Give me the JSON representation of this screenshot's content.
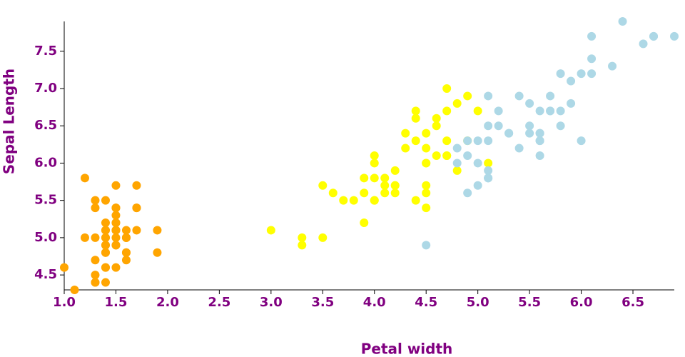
{
  "chart_data": {
    "type": "scatter",
    "x_label": "Petal width",
    "y_label": "Sepal Length",
    "xlim": [
      1.0,
      6.9
    ],
    "ylim": [
      4.3,
      7.9
    ],
    "xticks": [
      {
        "value": 1,
        "label": "1.0"
      },
      1.5,
      {
        "value": 2,
        "label": "2.0"
      },
      2.5,
      {
        "value": 3,
        "label": "3.0"
      },
      3.5,
      {
        "value": 4,
        "label": "4.0"
      },
      4.5,
      {
        "value": 5,
        "label": "5.0"
      },
      5.5,
      {
        "value": 6,
        "label": "6.0"
      },
      6.5
    ],
    "yticks": [
      4.5,
      {
        "value": 5,
        "label": "5.0"
      },
      5.5,
      {
        "value": 6,
        "label": "6.0"
      },
      6.5,
      {
        "value": 7,
        "label": "7.0"
      },
      7.5
    ],
    "series": [
      {
        "color": "#ffa500",
        "x": [
          1.4,
          1.4,
          1.3,
          1.5,
          1.4,
          1.7,
          1.4,
          1.5,
          1.4,
          1.5,
          1.5,
          1.6,
          1.4,
          1.1,
          1.2,
          1.5,
          1.3,
          1.4,
          1.7,
          1.5,
          1.7,
          1.5,
          1.0,
          1.7,
          1.9,
          1.6,
          1.6,
          1.5,
          1.4,
          1.6,
          1.6,
          1.5,
          1.5,
          1.4,
          1.5,
          1.2,
          1.3,
          1.4,
          1.3,
          1.5,
          1.3,
          1.3,
          1.3,
          1.6,
          1.9,
          1.4,
          1.6,
          1.4,
          1.5,
          1.4
        ],
        "values": [
          5.1,
          4.9,
          4.7,
          4.6,
          5.0,
          5.4,
          4.6,
          5.0,
          4.4,
          4.9,
          5.4,
          4.8,
          4.8,
          4.3,
          5.8,
          5.7,
          5.4,
          5.1,
          5.7,
          5.1,
          5.4,
          5.1,
          4.6,
          5.1,
          4.8,
          5.0,
          5.0,
          5.2,
          5.2,
          4.7,
          4.8,
          5.4,
          5.2,
          5.5,
          4.9,
          5.0,
          5.5,
          4.9,
          4.4,
          5.1,
          5.0,
          4.5,
          4.4,
          5.0,
          5.1,
          4.8,
          5.1,
          4.6,
          5.3,
          5.0
        ]
      },
      {
        "color": "#ffff00",
        "x": [
          4.7,
          4.5,
          4.9,
          4.0,
          4.6,
          4.5,
          4.7,
          3.3,
          4.6,
          3.9,
          3.5,
          4.2,
          4.0,
          4.7,
          3.6,
          4.4,
          4.5,
          4.1,
          4.5,
          3.9,
          4.8,
          4.0,
          4.9,
          4.7,
          4.3,
          4.4,
          4.8,
          5.0,
          4.5,
          3.5,
          3.8,
          3.7,
          3.9,
          5.1,
          4.5,
          4.5,
          4.7,
          4.4,
          4.1,
          4.0,
          4.4,
          4.6,
          4.0,
          3.3,
          4.2,
          4.2,
          4.2,
          4.3,
          3.0,
          4.1
        ],
        "values": [
          7.0,
          6.4,
          6.9,
          5.5,
          6.5,
          5.7,
          6.3,
          4.9,
          6.6,
          5.2,
          5.0,
          5.9,
          6.0,
          6.1,
          5.6,
          6.7,
          5.6,
          5.8,
          6.2,
          5.6,
          5.9,
          6.1,
          6.3,
          6.1,
          6.4,
          6.6,
          6.8,
          6.7,
          6.0,
          5.7,
          5.5,
          5.5,
          5.8,
          6.0,
          5.4,
          6.0,
          6.7,
          6.3,
          5.6,
          5.5,
          5.5,
          6.1,
          5.8,
          5.0,
          5.6,
          5.7,
          5.7,
          6.2,
          5.1,
          5.7
        ]
      },
      {
        "color": "#add8e6",
        "x": [
          6.0,
          5.1,
          5.9,
          5.6,
          5.8,
          6.6,
          4.5,
          6.3,
          5.8,
          6.1,
          5.1,
          5.3,
          5.5,
          5.0,
          5.1,
          5.3,
          5.5,
          6.7,
          6.9,
          5.0,
          5.7,
          4.9,
          6.7,
          4.9,
          5.7,
          6.0,
          4.8,
          4.9,
          5.6,
          5.8,
          6.1,
          6.4,
          5.6,
          5.1,
          5.6,
          6.1,
          5.6,
          5.5,
          4.8,
          5.4,
          5.6,
          5.1,
          5.1,
          5.9,
          5.7,
          5.2,
          5.0,
          5.2,
          5.4,
          5.1
        ],
        "values": [
          6.3,
          5.8,
          7.1,
          6.3,
          6.5,
          7.6,
          4.9,
          7.3,
          6.7,
          7.2,
          6.5,
          6.4,
          6.8,
          5.7,
          5.8,
          6.4,
          6.5,
          7.7,
          7.7,
          6.0,
          6.9,
          5.6,
          7.7,
          6.3,
          6.7,
          7.2,
          6.2,
          6.1,
          6.4,
          7.2,
          7.4,
          7.9,
          6.4,
          6.3,
          6.1,
          7.7,
          6.3,
          6.4,
          6.0,
          6.9,
          6.7,
          6.9,
          5.8,
          6.8,
          6.7,
          6.7,
          6.3,
          6.5,
          6.2,
          5.9
        ]
      }
    ]
  }
}
